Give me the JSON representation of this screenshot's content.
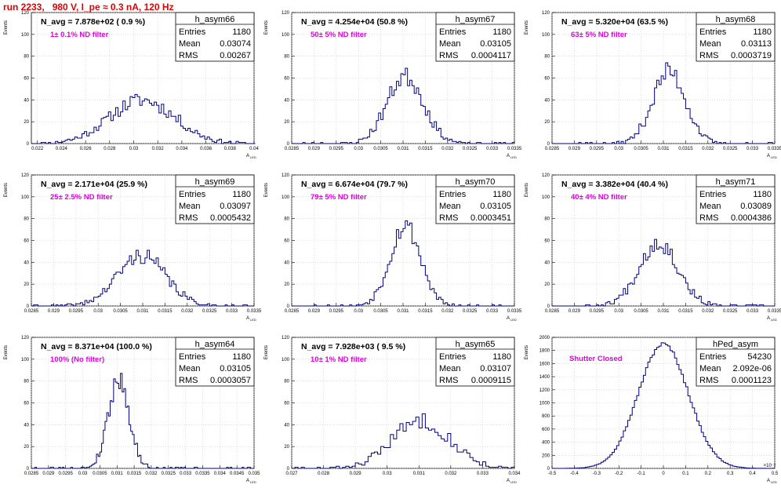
{
  "header": {
    "title": "run 2233,   980 V, I_pe ≈ 0.3 nA, 120 Hz"
  },
  "colors": {
    "histogram": "#00007f",
    "grid": "#c8c8c8",
    "header": "#e00000",
    "filter_label": "#e000e0"
  },
  "chart_data": [
    {
      "type": "bar",
      "name": "h_asym66",
      "navg": "N_avg = 7.878e+02 ( 0.9 %)",
      "filter": "1± 0.1% ND filter",
      "stats": {
        "Entries": "1180",
        "Mean": "0.03074",
        "RMS": "0.00267"
      },
      "xlabel": "A",
      "xlabel_sub": "LED",
      "ylabel": "Events",
      "xlim": [
        0.0215,
        0.04
      ],
      "ylim": [
        0,
        120
      ],
      "xticks": [
        "0.022",
        "0.024",
        "0.026",
        "0.028",
        "0.03",
        "0.032",
        "0.034",
        "0.036",
        "0.038",
        "0.04"
      ],
      "xtick_values": [
        0.022,
        0.024,
        0.026,
        0.028,
        0.03,
        0.032,
        0.034,
        0.036,
        0.038,
        0.04
      ],
      "yticks": [
        "0",
        "20",
        "40",
        "60",
        "80",
        "100",
        "120"
      ],
      "ytick_values": [
        0,
        20,
        40,
        60,
        80,
        100,
        120
      ],
      "fit": {
        "mean": 0.0307,
        "sigma": 0.0027,
        "peak": 40,
        "bin": 0.0002,
        "seed": 11
      }
    },
    {
      "type": "bar",
      "name": "h_asym67",
      "navg": "N_avg = 4.254e+04 (50.8 %)",
      "filter": "50± 5% ND filter",
      "stats": {
        "Entries": "1180",
        "Mean": "0.03105",
        "RMS": "0.0004117"
      },
      "xlabel": "A",
      "xlabel_sub": "LED",
      "ylabel": "Events",
      "xlim": [
        0.0285,
        0.0335
      ],
      "ylim": [
        0,
        120
      ],
      "xticks": [
        "0.0285",
        "0.029",
        "0.0295",
        "0.03",
        "0.0305",
        "0.031",
        "0.0315",
        "0.032",
        "0.0325",
        "0.033",
        "0.0335"
      ],
      "xtick_values": [
        0.0285,
        0.029,
        0.0295,
        0.03,
        0.0305,
        0.031,
        0.0315,
        0.032,
        0.0325,
        0.033,
        0.0335
      ],
      "yticks": [
        "0",
        "20",
        "40",
        "60",
        "80",
        "100",
        "120"
      ],
      "ytick_values": [
        0,
        20,
        40,
        60,
        80,
        100,
        120
      ],
      "fit": {
        "mean": 0.03105,
        "sigma": 0.00041,
        "peak": 62,
        "bin": 5e-05,
        "seed": 23
      }
    },
    {
      "type": "bar",
      "name": "h_asym68",
      "navg": "N_avg = 5.320e+04 (63.5 %)",
      "filter": "63± 5% ND filter",
      "stats": {
        "Entries": "1180",
        "Mean": "0.03113",
        "RMS": "0.0003719"
      },
      "xlabel": "A",
      "xlabel_sub": "LED",
      "ylabel": "Events",
      "xlim": [
        0.0285,
        0.0335
      ],
      "ylim": [
        0,
        120
      ],
      "xticks": [
        "0.0285",
        "0.029",
        "0.0295",
        "0.03",
        "0.0305",
        "0.031",
        "0.0315",
        "0.032",
        "0.0325",
        "0.033",
        "0.0335"
      ],
      "xtick_values": [
        0.0285,
        0.029,
        0.0295,
        0.03,
        0.0305,
        0.031,
        0.0315,
        0.032,
        0.0325,
        0.033,
        0.0335
      ],
      "yticks": [
        "0",
        "20",
        "40",
        "60",
        "80",
        "100",
        "120"
      ],
      "ytick_values": [
        0,
        20,
        40,
        60,
        80,
        100,
        120
      ],
      "fit": {
        "mean": 0.03113,
        "sigma": 0.00037,
        "peak": 66,
        "bin": 5e-05,
        "seed": 37
      }
    },
    {
      "type": "bar",
      "name": "h_asym69",
      "navg": "N_avg = 2.171e+04 (25.9 %)",
      "filter": "25± 2.5% ND filter",
      "stats": {
        "Entries": "1180",
        "Mean": "0.03097",
        "RMS": "0.0005432"
      },
      "xlabel": "A",
      "xlabel_sub": "LED",
      "ylabel": "Events",
      "xlim": [
        0.0285,
        0.0335
      ],
      "ylim": [
        0,
        120
      ],
      "xticks": [
        "0.0285",
        "0.029",
        "0.0295",
        "0.03",
        "0.0305",
        "0.031",
        "0.0315",
        "0.032",
        "0.0325",
        "0.033",
        "0.0335"
      ],
      "xtick_values": [
        0.0285,
        0.029,
        0.0295,
        0.03,
        0.0305,
        0.031,
        0.0315,
        0.032,
        0.0325,
        0.033,
        0.0335
      ],
      "yticks": [
        "0",
        "20",
        "40",
        "60",
        "80",
        "100",
        "120"
      ],
      "ytick_values": [
        0,
        20,
        40,
        60,
        80,
        100,
        120
      ],
      "fit": {
        "mean": 0.03097,
        "sigma": 0.00054,
        "peak": 46,
        "bin": 5e-05,
        "seed": 41
      }
    },
    {
      "type": "bar",
      "name": "h_asym70",
      "navg": "N_avg = 6.674e+04 (79.7 %)",
      "filter": "79± 5% ND filter",
      "stats": {
        "Entries": "1180",
        "Mean": "0.03105",
        "RMS": "0.0003451"
      },
      "xlabel": "A",
      "xlabel_sub": "LED",
      "ylabel": "Events",
      "xlim": [
        0.0285,
        0.0335
      ],
      "ylim": [
        0,
        120
      ],
      "xticks": [
        "0.0285",
        "0.029",
        "0.0295",
        "0.03",
        "0.0305",
        "0.031",
        "0.0315",
        "0.032",
        "0.0325",
        "0.033",
        "0.0335"
      ],
      "xtick_values": [
        0.0285,
        0.029,
        0.0295,
        0.03,
        0.0305,
        0.031,
        0.0315,
        0.032,
        0.0325,
        0.033,
        0.0335
      ],
      "yticks": [
        "0",
        "20",
        "40",
        "60",
        "80",
        "100",
        "120"
      ],
      "ytick_values": [
        0,
        20,
        40,
        60,
        80,
        100,
        120
      ],
      "fit": {
        "mean": 0.03105,
        "sigma": 0.000345,
        "peak": 74,
        "bin": 5e-05,
        "seed": 53
      }
    },
    {
      "type": "bar",
      "name": "h_asym71",
      "navg": "N_avg = 3.382e+04 (40.4 %)",
      "filter": "40± 4% ND filter",
      "stats": {
        "Entries": "1180",
        "Mean": "0.03089",
        "RMS": "0.0004386"
      },
      "xlabel": "A",
      "xlabel_sub": "LED",
      "ylabel": "Events",
      "xlim": [
        0.0285,
        0.0335
      ],
      "ylim": [
        0,
        120
      ],
      "xticks": [
        "0.0285",
        "0.029",
        "0.0295",
        "0.03",
        "0.0305",
        "0.031",
        "0.0315",
        "0.032",
        "0.0325",
        "0.033",
        "0.0335"
      ],
      "xtick_values": [
        0.0285,
        0.029,
        0.0295,
        0.03,
        0.0305,
        0.031,
        0.0315,
        0.032,
        0.0325,
        0.033,
        0.0335
      ],
      "yticks": [
        "0",
        "20",
        "40",
        "60",
        "80",
        "100",
        "120"
      ],
      "ytick_values": [
        0,
        20,
        40,
        60,
        80,
        100,
        120
      ],
      "fit": {
        "mean": 0.03089,
        "sigma": 0.00044,
        "peak": 58,
        "bin": 5e-05,
        "seed": 67
      }
    },
    {
      "type": "bar",
      "name": "h_asym64",
      "navg": "N_avg = 8.371e+04 (100.0 %)",
      "filter": "100% (No filter)",
      "stats": {
        "Entries": "1180",
        "Mean": "0.03105",
        "RMS": "0.0003057"
      },
      "xlabel": "A",
      "xlabel_sub": "LED",
      "ylabel": "Events",
      "xlim": [
        0.0285,
        0.035
      ],
      "ylim": [
        0,
        120
      ],
      "xticks": [
        "0.0285",
        "0.029",
        "0.0295",
        "0.03",
        "0.0305",
        "0.031",
        "0.0315",
        "0.032",
        "0.0325",
        "0.033",
        "0.0335",
        "0.034",
        "0.0345",
        "0.035"
      ],
      "xtick_values": [
        0.0285,
        0.029,
        0.0295,
        0.03,
        0.0305,
        0.031,
        0.0315,
        0.032,
        0.0325,
        0.033,
        0.0335,
        0.034,
        0.0345,
        0.035
      ],
      "yticks": [
        "0",
        "20",
        "40",
        "60",
        "80",
        "100",
        "120"
      ],
      "ytick_values": [
        0,
        20,
        40,
        60,
        80,
        100,
        120
      ],
      "fit": {
        "mean": 0.03105,
        "sigma": 0.000306,
        "peak": 82,
        "bin": 5e-05,
        "seed": 79
      }
    },
    {
      "type": "bar",
      "name": "h_asym65",
      "navg": "N_avg = 7.928e+03 ( 9.5 %)",
      "filter": "10± 1% ND filter",
      "stats": {
        "Entries": "1180",
        "Mean": "0.03107",
        "RMS": "0.0009115"
      },
      "xlabel": "A",
      "xlabel_sub": "LED",
      "ylabel": "Events",
      "xlim": [
        0.027,
        0.034
      ],
      "ylim": [
        0,
        120
      ],
      "xticks": [
        "0.027",
        "0.028",
        "0.029",
        "0.03",
        "0.031",
        "0.032",
        "0.033",
        "0.034"
      ],
      "xtick_values": [
        0.027,
        0.028,
        0.029,
        0.03,
        0.031,
        0.032,
        0.033,
        0.034
      ],
      "yticks": [
        "0",
        "20",
        "40",
        "60",
        "80",
        "100",
        "120"
      ],
      "ytick_values": [
        0,
        20,
        40,
        60,
        80,
        100,
        120
      ],
      "fit": {
        "mean": 0.03107,
        "sigma": 0.00091,
        "peak": 44,
        "bin": 0.0001,
        "seed": 83
      }
    },
    {
      "type": "bar",
      "name": "hPed_asym",
      "navg": "",
      "filter": "Shutter Closed",
      "stats": {
        "Entries": "54230",
        "Mean": "2.092e-06",
        "RMS": "0.0001123"
      },
      "xlabel": "A",
      "xlabel_sub": "LED",
      "ylabel": "Events",
      "exponent": "×10⁻³",
      "xlim": [
        -0.5,
        0.5
      ],
      "ylim": [
        0,
        2000
      ],
      "xticks": [
        "-0.5",
        "-0.4",
        "-0.3",
        "-0.2",
        "-0.1",
        "0",
        "0.1",
        "0.2",
        "0.3",
        "0.4",
        "0.5"
      ],
      "xtick_values": [
        -0.5,
        -0.4,
        -0.3,
        -0.2,
        -0.1,
        0,
        0.1,
        0.2,
        0.3,
        0.4,
        0.5
      ],
      "yticks": [
        "0",
        "200",
        "400",
        "600",
        "800",
        "1000",
        "1200",
        "1400",
        "1600",
        "1800",
        "2000"
      ],
      "ytick_values": [
        0,
        200,
        400,
        600,
        800,
        1000,
        1200,
        1400,
        1600,
        1800,
        2000
      ],
      "fit": {
        "mean": 0.0,
        "sigma": 0.1123,
        "peak": 1900,
        "bin": 0.01,
        "seed": 97
      }
    }
  ]
}
